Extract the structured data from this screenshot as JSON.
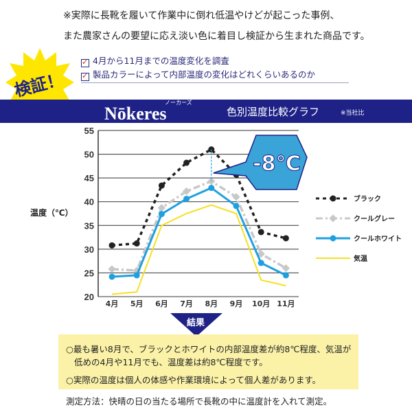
{
  "intro": [
    "※実際に長靴を履いて作業中に倒れ低温やけどが起こった事例、",
    "また農家さんの要望に応え淡い色に着目し検証から生まれた商品です。"
  ],
  "badge": "検証！",
  "checks": [
    "4月から11月までの温度変化を調査",
    "製品カラーによって内部温度の変化はどれくらいあるのか"
  ],
  "brand": {
    "logo": "Nōkeres",
    "ruby": "ノーカーズ",
    "subtitle": "色別温度比較グラフ",
    "note": "※当社比"
  },
  "chart_data": {
    "type": "line",
    "categories": [
      "4月",
      "5月",
      "6月",
      "7月",
      "8月",
      "9月",
      "10月",
      "11月"
    ],
    "ylabel": "温度（℃）",
    "ylim": [
      20,
      55
    ],
    "yticks": [
      20,
      25,
      30,
      35,
      40,
      45,
      50,
      55
    ],
    "grid": true,
    "legend_position": "right",
    "annotation": "-8℃",
    "series": [
      {
        "name": "ブラック",
        "color": "#222222",
        "style": "dotted",
        "values": [
          30.8,
          31.2,
          43.4,
          48.2,
          51.0,
          45.7,
          33.6,
          32.3
        ]
      },
      {
        "name": "クールグレー",
        "color": "#c8c8c8",
        "style": "dashdot",
        "values": [
          25.8,
          25.5,
          38.7,
          42.2,
          44.3,
          41.0,
          29.0,
          26.0
        ]
      },
      {
        "name": "クールホワイト",
        "color": "#1ea0e0",
        "style": "solid",
        "values": [
          24.2,
          24.5,
          37.4,
          40.6,
          42.9,
          39.1,
          27.1,
          24.5
        ]
      },
      {
        "name": "気温",
        "color": "#f5e020",
        "style": "plain",
        "values": [
          20.5,
          21.0,
          35.0,
          37.5,
          39.3,
          37.5,
          23.5,
          22.3
        ]
      }
    ]
  },
  "result": {
    "label": "結果",
    "lines": [
      "○最も暑い8月で、ブラックとホワイトの内部温度差が約8℃程度、気温が",
      "低めの4月や11月でも、温度差は約8℃程度です。",
      "○実際の温度は個人の体感や作業環境によって個人差があります。"
    ]
  },
  "method": "測定方法：快晴の日の当たる場所で長靴の中に温度計を入れて測定。"
}
